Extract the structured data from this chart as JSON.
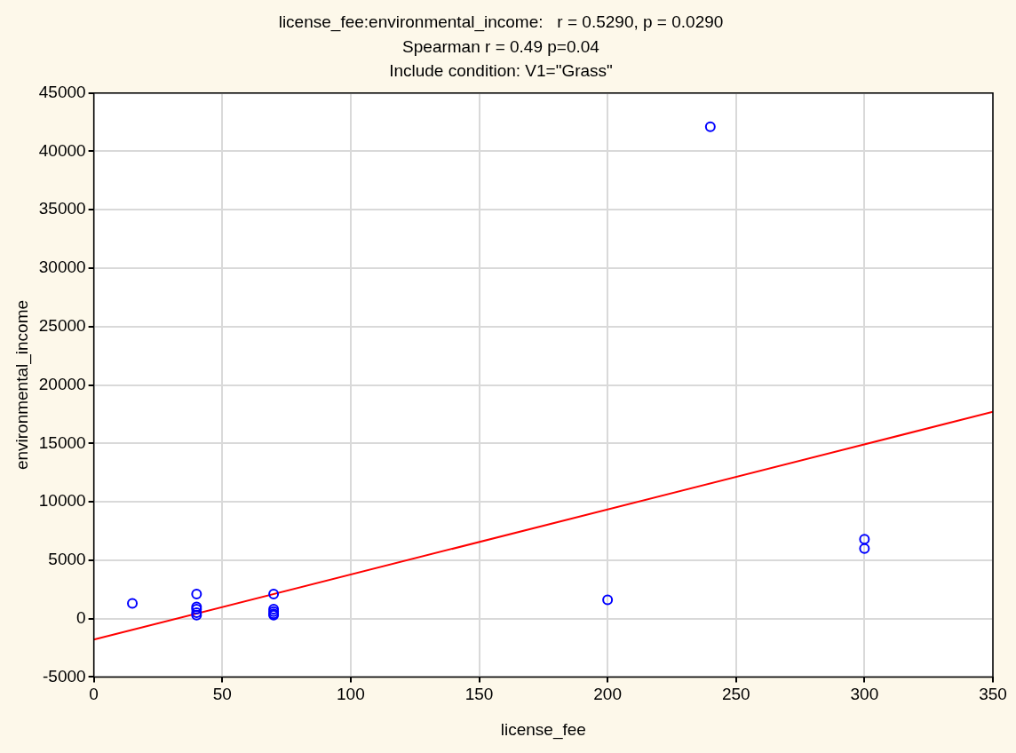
{
  "chart_data": {
    "type": "scatter",
    "title": "license_fee:environmental_income:   r = 0.5290, p = 0.0290",
    "subtitle": "Spearman r = 0.49 p=0.04",
    "annotations": [
      "Include condition: V1=\"Grass\""
    ],
    "xlabel": "license_fee",
    "ylabel": "environmental_income",
    "xlim": [
      0,
      350
    ],
    "xticks": [
      0,
      50,
      100,
      150,
      200,
      250,
      300,
      350
    ],
    "ylim": [
      -5000,
      45000
    ],
    "yticks": [
      -5000,
      0,
      5000,
      10000,
      15000,
      20000,
      25000,
      30000,
      35000,
      40000,
      45000
    ],
    "grid": true,
    "marker": "circle",
    "series": [
      {
        "type": "scatter",
        "color": "#0000ff",
        "x": [
          15,
          40,
          40,
          40,
          40,
          40,
          70,
          70,
          70,
          70,
          70,
          200,
          240,
          300,
          300
        ],
        "values": [
          1300,
          2100,
          1000,
          800,
          500,
          300,
          2100,
          800,
          600,
          400,
          300,
          1600,
          42100,
          6800,
          6000
        ]
      },
      {
        "type": "line",
        "color": "#ff0000",
        "marker": "none",
        "x": [
          0,
          350
        ],
        "values": [
          -1800,
          17700
        ]
      }
    ]
  }
}
